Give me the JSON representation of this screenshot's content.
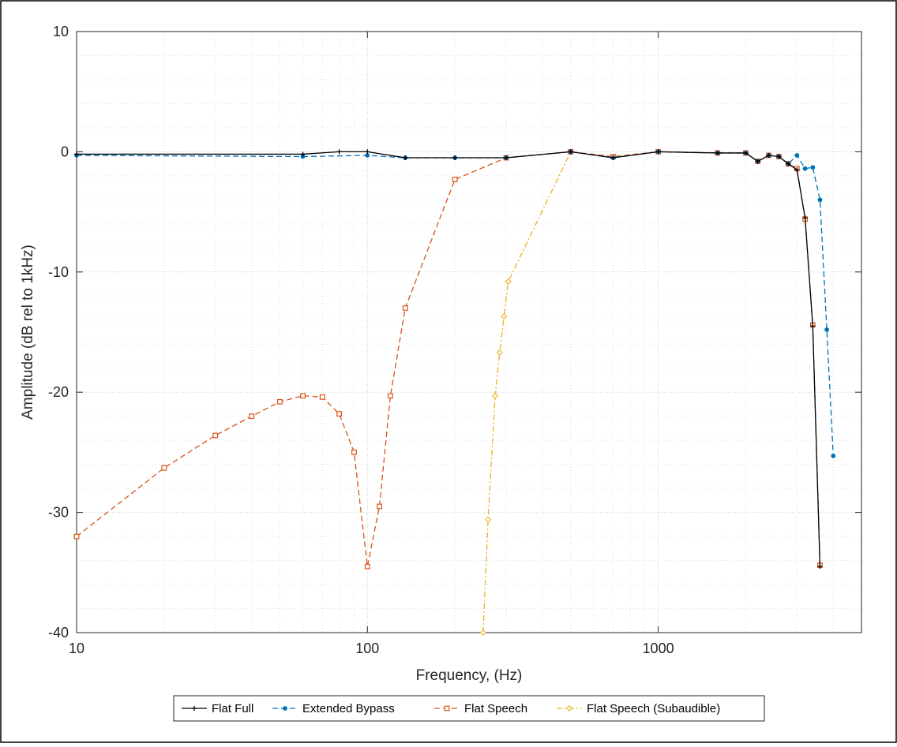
{
  "chart_data": {
    "type": "line",
    "title": "",
    "xlabel": "Frequency, (Hz)",
    "ylabel": "Amplitude (dB rel to 1kHz)",
    "xscale": "log",
    "xlim": [
      10,
      5000
    ],
    "ylim": [
      -40,
      10
    ],
    "grid": true,
    "minor_grid": true,
    "legend_placement": "bottom-outside",
    "x_tick_labels": [
      "10",
      "100",
      "1000"
    ],
    "x_tick_values": [
      10,
      100,
      1000
    ],
    "y_tick_labels": [
      "10",
      "0",
      "-10",
      "-20",
      "-30",
      "-40"
    ],
    "y_tick_values": [
      10,
      0,
      -10,
      -20,
      -30,
      -40
    ],
    "series": [
      {
        "name": "Flat Full",
        "color": "#000000",
        "dash": "solid",
        "marker": "plus",
        "x": [
          10,
          60,
          80,
          100,
          135,
          200,
          300,
          500,
          700,
          1000,
          1600,
          2000,
          2200,
          2400,
          2600,
          2800,
          3000,
          3200,
          3400,
          3600
        ],
        "y": [
          -0.2,
          -0.2,
          0.0,
          0.0,
          -0.5,
          -0.5,
          -0.5,
          0.0,
          -0.5,
          0.0,
          -0.1,
          -0.1,
          -0.8,
          -0.3,
          -0.4,
          -1.0,
          -1.5,
          -5.5,
          -14.5,
          -34.5
        ]
      },
      {
        "name": "Extended Bypass",
        "color": "#0072BD",
        "dash": "dashed",
        "marker": "dot",
        "x": [
          10,
          60,
          100,
          135,
          200,
          300,
          500,
          700,
          1000,
          1600,
          2000,
          2200,
          2400,
          2600,
          2800,
          3000,
          3200,
          3400,
          3600,
          3800,
          4000
        ],
        "y": [
          -0.3,
          -0.4,
          -0.3,
          -0.5,
          -0.5,
          -0.5,
          0.0,
          -0.5,
          0.0,
          -0.1,
          -0.1,
          -0.8,
          -0.3,
          -0.4,
          -1.0,
          -0.3,
          -1.4,
          -1.3,
          -4.0,
          -14.8,
          -25.3
        ]
      },
      {
        "name": "Flat Speech",
        "color": "#D95319",
        "dash": "dashed",
        "marker": "square",
        "x": [
          10,
          20,
          30,
          40,
          50,
          60,
          70,
          80,
          90,
          100,
          110,
          120,
          135,
          200,
          300,
          500,
          700,
          1000,
          1600,
          2000,
          2200,
          2400,
          2600,
          2800,
          3000,
          3200,
          3400,
          3600
        ],
        "y": [
          -32.0,
          -26.3,
          -23.6,
          -22.0,
          -20.8,
          -20.3,
          -20.4,
          -21.8,
          -25.0,
          -34.5,
          -29.5,
          -20.3,
          -13.0,
          -2.3,
          -0.5,
          0.0,
          -0.4,
          0.0,
          -0.1,
          -0.1,
          -0.8,
          -0.3,
          -0.4,
          -1.0,
          -1.4,
          -5.6,
          -14.4,
          -34.4
        ]
      },
      {
        "name": "Flat Speech (Subaudible)",
        "color": "#EDB120",
        "dash": "dashdot",
        "marker": "diamond",
        "x": [
          250,
          260,
          275,
          285,
          295,
          305,
          500
        ],
        "y": [
          -40.0,
          -30.6,
          -20.3,
          -16.7,
          -13.7,
          -10.8,
          0.0
        ]
      }
    ]
  }
}
